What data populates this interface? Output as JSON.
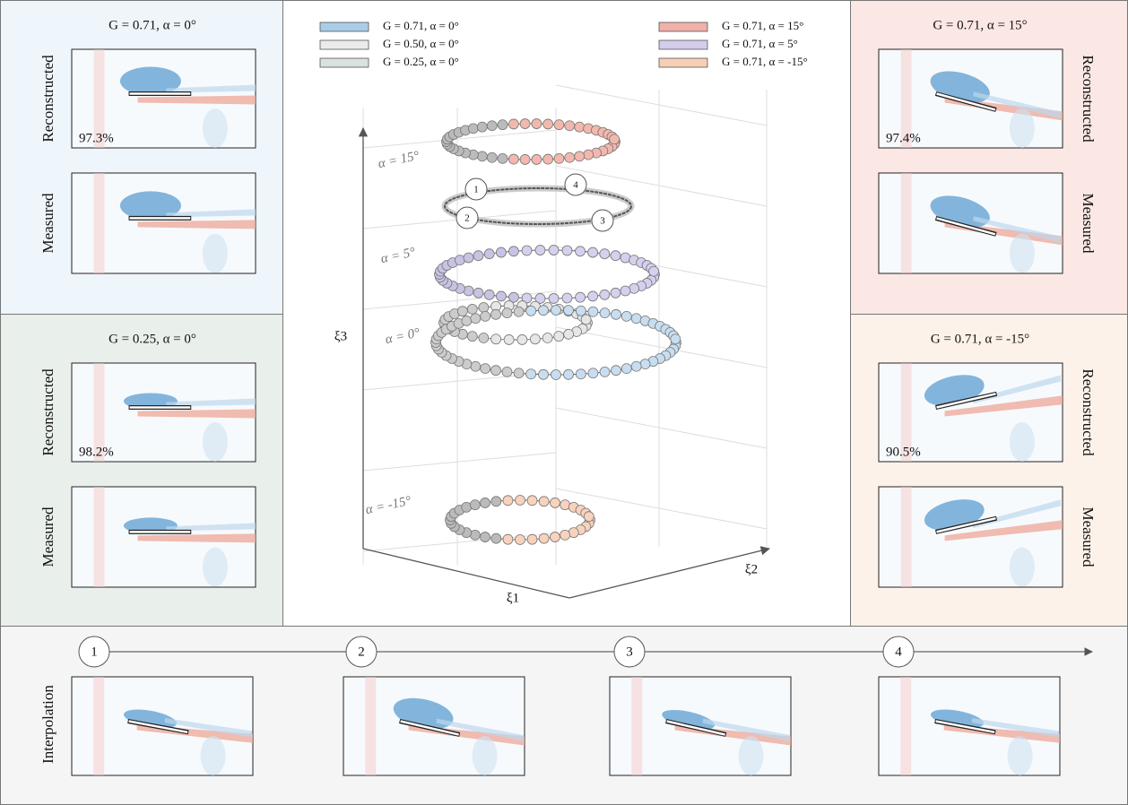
{
  "panels": [
    {
      "title": "G = 0.71, α = 0°",
      "top_label": "Reconstructed",
      "bottom_label": "Measured",
      "accuracy": "97.3%"
    },
    {
      "title": "G = 0.25, α = 0°",
      "top_label": "Reconstructed",
      "bottom_label": "Measured",
      "accuracy": "98.2%"
    },
    {
      "title": "G = 0.71, α = 15°",
      "top_label": "Reconstructed",
      "bottom_label": "Measured",
      "accuracy": "97.4%"
    },
    {
      "title": "G = 0.71, α = -15°",
      "top_label": "Reconstructed",
      "bottom_label": "Measured",
      "accuracy": "90.5%"
    }
  ],
  "legend": [
    "G = 0.71, α = 0°",
    "G = 0.50, α = 0°",
    "G = 0.25, α = 0°",
    "G = 0.71, α = 15°",
    "G = 0.71, α = 5°",
    "G = 0.71, α = -15°"
  ],
  "plot": {
    "axes": [
      "ξ1",
      "ξ2",
      "ξ3"
    ],
    "levels": [
      "α = 15°",
      "α = 5°",
      "α = 0°",
      "α = -15°"
    ],
    "markers": [
      "1",
      "2",
      "3",
      "4"
    ]
  },
  "interpolation": {
    "label": "Interpolation",
    "steps": [
      "1",
      "2",
      "3",
      "4"
    ]
  }
}
